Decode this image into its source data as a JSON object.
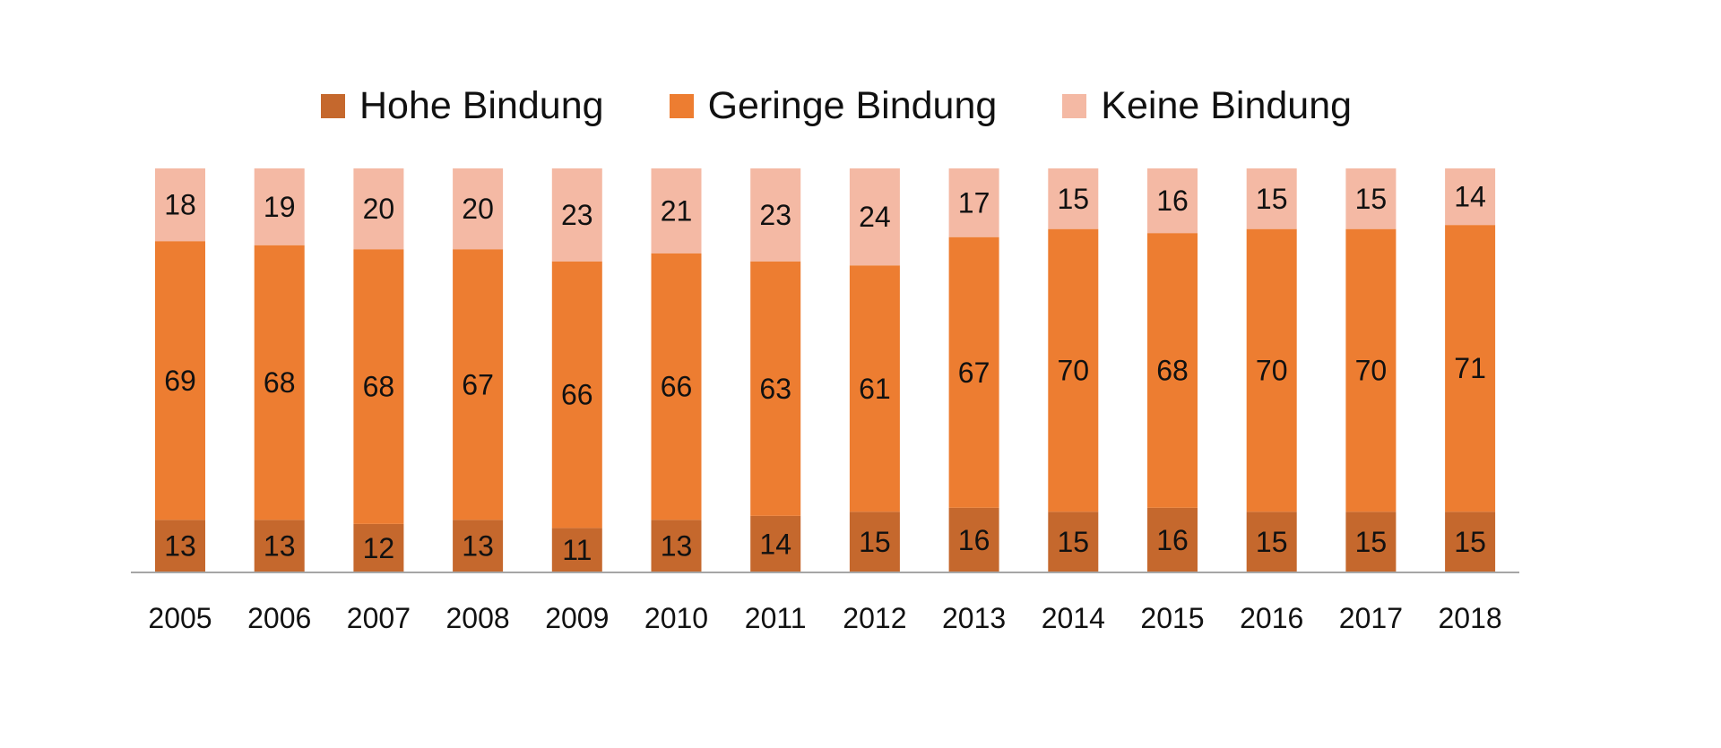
{
  "chart_data": {
    "type": "bar",
    "stacked": true,
    "categories": [
      "2005",
      "2006",
      "2007",
      "2008",
      "2009",
      "2010",
      "2011",
      "2012",
      "2013",
      "2014",
      "2015",
      "2016",
      "2017",
      "2018"
    ],
    "series": [
      {
        "name": "Hohe Bindung",
        "color": "#C5682D",
        "values": [
          13,
          13,
          12,
          13,
          11,
          13,
          14,
          15,
          16,
          15,
          16,
          15,
          15,
          15
        ]
      },
      {
        "name": "Geringe Bindung",
        "color": "#ED7D31",
        "values": [
          69,
          68,
          68,
          67,
          66,
          66,
          63,
          61,
          67,
          70,
          68,
          70,
          70,
          71
        ]
      },
      {
        "name": "Keine Bindung",
        "color": "#F4B9A4",
        "values": [
          18,
          19,
          20,
          20,
          23,
          21,
          23,
          24,
          17,
          15,
          16,
          15,
          15,
          14
        ]
      }
    ],
    "legend_position": "top",
    "grid": false,
    "ylim": [
      0,
      100
    ],
    "data_labels": true
  }
}
